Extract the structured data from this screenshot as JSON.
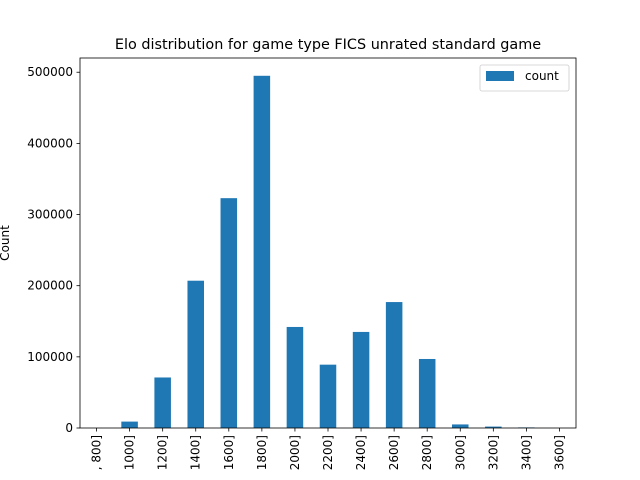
{
  "chart_data": {
    "type": "bar",
    "title": "Elo distribution for game type FICS unrated standard game",
    "xlabel": "",
    "ylabel": "Count",
    "categories": [
      ", 800]",
      "1000]",
      "1200]",
      "1400]",
      "1600]",
      "1800]",
      "2000]",
      "2200]",
      "2400]",
      "2600]",
      "2800]",
      "3000]",
      "3200]",
      "3400]",
      "3600]"
    ],
    "series": [
      {
        "name": "count",
        "values": [
          0,
          9000,
          71000,
          207000,
          323000,
          495000,
          142000,
          89000,
          135000,
          177000,
          97000,
          5000,
          2000,
          800,
          0
        ]
      }
    ],
    "ylim": [
      0,
      520000
    ],
    "yticks": [
      0,
      100000,
      200000,
      300000,
      400000,
      500000
    ],
    "grid": false,
    "legend_position": "top-right",
    "bar_color": "#1f77b4"
  }
}
